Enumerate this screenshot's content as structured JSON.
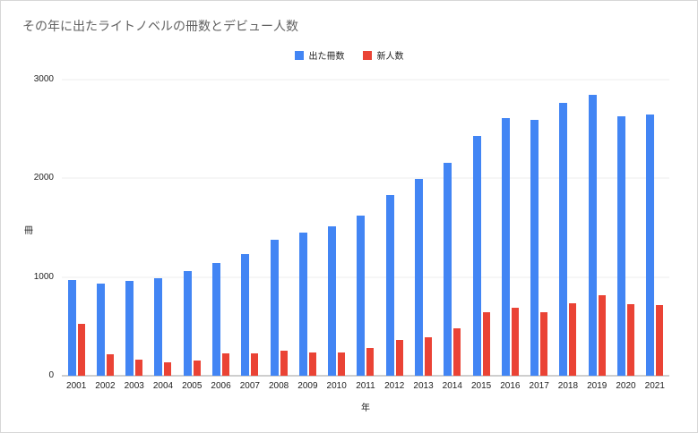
{
  "chart_data": {
    "type": "bar",
    "title": "その年に出たライトノベルの冊数とデビュー人数",
    "xlabel": "年",
    "ylabel": "冊",
    "ylim": [
      0,
      3000
    ],
    "yticks": [
      0,
      1000,
      2000,
      3000
    ],
    "grid": true,
    "legend_position": "top",
    "categories": [
      "2001",
      "2002",
      "2003",
      "2004",
      "2005",
      "2006",
      "2007",
      "2008",
      "2009",
      "2010",
      "2011",
      "2012",
      "2013",
      "2014",
      "2015",
      "2016",
      "2017",
      "2018",
      "2019",
      "2020",
      "2021"
    ],
    "series": [
      {
        "key": "books",
        "name": "出た冊数",
        "color": "#4285f4",
        "values": [
          970,
          930,
          960,
          990,
          1060,
          1140,
          1230,
          1380,
          1450,
          1510,
          1620,
          1830,
          1990,
          2160,
          2430,
          2610,
          2590,
          2760,
          2850,
          2630,
          2650
        ]
      },
      {
        "key": "newcomers",
        "name": "新人数",
        "color": "#ea4335",
        "values": [
          530,
          220,
          160,
          140,
          150,
          230,
          230,
          250,
          240,
          235,
          280,
          360,
          390,
          480,
          640,
          690,
          640,
          730,
          820,
          725,
          715
        ]
      }
    ]
  }
}
